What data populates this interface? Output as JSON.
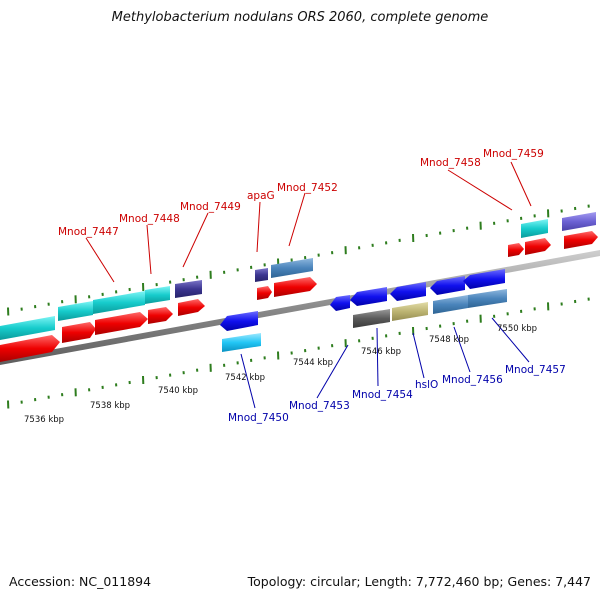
{
  "title": "Methylobacterium nodulans ORS 2060, complete genome",
  "footer": {
    "accession": "Accession: NC_011894",
    "summary": "Topology: circular; Length: 7,772,460 bp; Genes: 7,447"
  },
  "ticks": [
    "7536 kbp",
    "7538 kbp",
    "7540 kbp",
    "7542 kbp",
    "7544 kbp",
    "7546 kbp",
    "7548 kbp",
    "7550 kbp"
  ],
  "genes_forward": [
    "Mnod_7447",
    "Mnod_7448",
    "Mnod_7449",
    "apaG",
    "Mnod_7452",
    "Mnod_7458",
    "Mnod_7459"
  ],
  "genes_reverse": [
    "Mnod_7450",
    "Mnod_7453",
    "Mnod_7454",
    "hslO",
    "Mnod_7456",
    "Mnod_7457"
  ],
  "colors": {
    "forward_label": "#cc0000",
    "reverse_label": "#0000aa",
    "cds": "#ff0000",
    "backbone": "#888888",
    "tick": "#2e7d1e"
  }
}
